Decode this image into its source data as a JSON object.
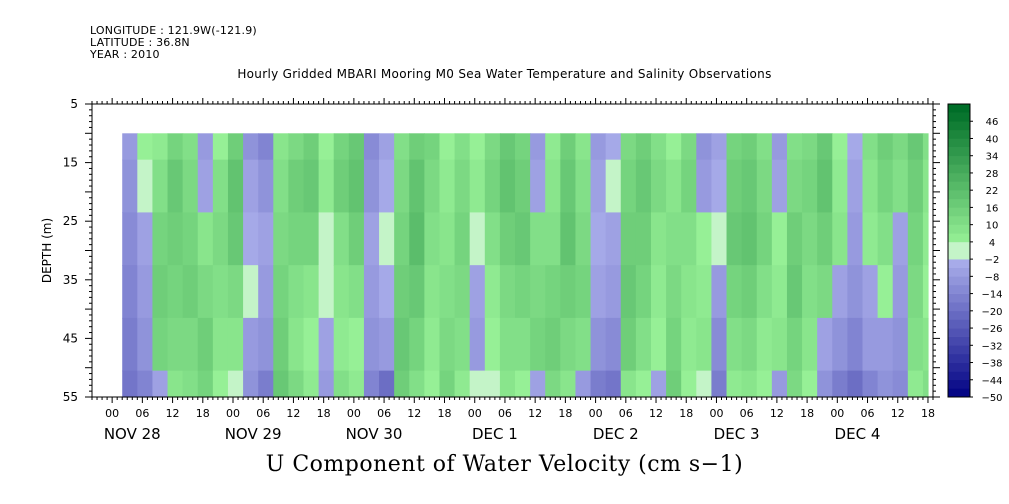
{
  "header": {
    "longitude": "LONGITUDE : 121.9W(-121.9)",
    "latitude": "LATITUDE : 36.8N",
    "year": "YEAR : 2010"
  },
  "chart_data": {
    "type": "heatmap",
    "title": "Hourly Gridded MBARI Mooring M0 Sea Water Temperature and Salinity Observations",
    "subtitle": "U Component of Water Velocity (cm s−1)",
    "ylabel": "DEPTH (m)",
    "xlabel": "",
    "ylim": [
      5,
      55
    ],
    "y_inverted": true,
    "y_ticks": [
      5,
      15,
      25,
      35,
      45,
      55
    ],
    "x_hour_ticks": [
      "00",
      "06",
      "12",
      "18",
      "00",
      "06",
      "12",
      "18",
      "00",
      "06",
      "12",
      "18",
      "00",
      "06",
      "12",
      "18",
      "00",
      "06",
      "12",
      "18",
      "00",
      "06",
      "12",
      "18",
      "00",
      "06",
      "12",
      "18"
    ],
    "x_day_labels": [
      "NOV 28",
      "NOV 29",
      "NOV 30",
      "DEC  1",
      "DEC  2",
      "DEC  3",
      "DEC  4"
    ],
    "x_range_hours": [
      -4,
      163
    ],
    "data_start_hour": 2,
    "data_depth_range": [
      10,
      55
    ],
    "colorbar_levels": [
      "46",
      "40",
      "34",
      "28",
      "22",
      "16",
      "10",
      "4",
      "−2",
      "−8",
      "−14",
      "−20",
      "−26",
      "−32",
      "−38",
      "−44",
      "−50"
    ],
    "colorbar_range": [
      -50,
      52
    ],
    "colorbar_step": 3,
    "pattern_note_levels": "values dominated by -8..22; alternating positive (green) and negative (blue) bands in time",
    "columns": [
      {
        "hour": 2,
        "values": [
          -8,
          -10,
          -12,
          -14,
          -16,
          -18
        ]
      },
      {
        "hour": 5,
        "values": [
          4,
          2,
          -6,
          -8,
          -10,
          -14
        ]
      },
      {
        "hour": 8,
        "values": [
          6,
          10,
          14,
          16,
          14,
          -6
        ]
      },
      {
        "hour": 11,
        "values": [
          14,
          18,
          16,
          14,
          12,
          8
        ]
      },
      {
        "hour": 14,
        "values": [
          10,
          12,
          14,
          16,
          12,
          10
        ]
      },
      {
        "hour": 17,
        "values": [
          -8,
          -6,
          8,
          12,
          16,
          14
        ]
      },
      {
        "hour": 20,
        "values": [
          4,
          10,
          12,
          10,
          8,
          4
        ]
      },
      {
        "hour": 23,
        "values": [
          16,
          20,
          18,
          12,
          8,
          2
        ]
      },
      {
        "hour": 26,
        "values": [
          -10,
          -6,
          -4,
          -2,
          -8,
          -10
        ]
      },
      {
        "hour": 29,
        "values": [
          -14,
          -10,
          -6,
          -8,
          -10,
          -16
        ]
      },
      {
        "hour": 32,
        "values": [
          8,
          10,
          12,
          14,
          16,
          18
        ]
      },
      {
        "hour": 35,
        "values": [
          12,
          16,
          14,
          10,
          8,
          12
        ]
      },
      {
        "hour": 38,
        "values": [
          16,
          18,
          14,
          8,
          4,
          6
        ]
      },
      {
        "hour": 41,
        "values": [
          4,
          6,
          2,
          -2,
          -6,
          -8
        ]
      },
      {
        "hour": 44,
        "values": [
          14,
          16,
          10,
          8,
          6,
          10
        ]
      },
      {
        "hour": 47,
        "values": [
          18,
          20,
          16,
          10,
          4,
          6
        ]
      },
      {
        "hour": 50,
        "values": [
          -12,
          -10,
          -6,
          -8,
          -10,
          -14
        ]
      },
      {
        "hour": 53,
        "values": [
          -6,
          -4,
          -2,
          -4,
          -8,
          -20
        ]
      },
      {
        "hour": 56,
        "values": [
          10,
          12,
          14,
          16,
          18,
          16
        ]
      },
      {
        "hour": 59,
        "values": [
          16,
          20,
          22,
          18,
          14,
          10
        ]
      },
      {
        "hour": 62,
        "values": [
          14,
          12,
          10,
          8,
          6,
          4
        ]
      },
      {
        "hour": 65,
        "values": [
          4,
          6,
          8,
          10,
          12,
          14
        ]
      },
      {
        "hour": 68,
        "values": [
          10,
          12,
          14,
          12,
          10,
          6
        ]
      },
      {
        "hour": 71,
        "values": [
          4,
          6,
          -2,
          -6,
          -8,
          2
        ]
      },
      {
        "hour": 74,
        "values": [
          12,
          14,
          10,
          6,
          4,
          2
        ]
      },
      {
        "hour": 77,
        "values": [
          18,
          20,
          16,
          12,
          10,
          8
        ]
      },
      {
        "hour": 80,
        "values": [
          14,
          16,
          18,
          14,
          10,
          4
        ]
      },
      {
        "hour": 83,
        "values": [
          -8,
          -6,
          10,
          12,
          14,
          -6
        ]
      },
      {
        "hour": 86,
        "values": [
          6,
          8,
          10,
          14,
          16,
          12
        ]
      },
      {
        "hour": 89,
        "values": [
          16,
          18,
          20,
          16,
          12,
          8
        ]
      },
      {
        "hour": 92,
        "values": [
          8,
          10,
          12,
          14,
          10,
          -8
        ]
      },
      {
        "hour": 95,
        "values": [
          -8,
          -6,
          -4,
          -6,
          -10,
          -16
        ]
      },
      {
        "hour": 98,
        "values": [
          -4,
          -2,
          -6,
          -8,
          -12,
          -18
        ]
      },
      {
        "hour": 101,
        "values": [
          12,
          14,
          16,
          18,
          16,
          8
        ]
      },
      {
        "hour": 104,
        "values": [
          16,
          18,
          16,
          14,
          10,
          4
        ]
      },
      {
        "hour": 107,
        "values": [
          10,
          12,
          8,
          6,
          4,
          -6
        ]
      },
      {
        "hour": 110,
        "values": [
          4,
          8,
          10,
          12,
          14,
          16
        ]
      },
      {
        "hour": 113,
        "values": [
          12,
          14,
          10,
          8,
          6,
          4
        ]
      },
      {
        "hour": 116,
        "values": [
          -10,
          -8,
          4,
          6,
          8,
          2
        ]
      },
      {
        "hour": 119,
        "values": [
          -6,
          -4,
          -2,
          -8,
          -12,
          -16
        ]
      },
      {
        "hour": 122,
        "values": [
          14,
          16,
          18,
          14,
          10,
          6
        ]
      },
      {
        "hour": 125,
        "values": [
          16,
          18,
          20,
          16,
          12,
          8
        ]
      },
      {
        "hour": 128,
        "values": [
          10,
          12,
          14,
          10,
          6,
          4
        ]
      },
      {
        "hour": 131,
        "values": [
          -8,
          -6,
          4,
          6,
          8,
          -8
        ]
      },
      {
        "hour": 134,
        "values": [
          10,
          12,
          16,
          18,
          14,
          12
        ]
      },
      {
        "hour": 137,
        "values": [
          12,
          14,
          12,
          10,
          8,
          4
        ]
      },
      {
        "hour": 140,
        "values": [
          18,
          20,
          16,
          12,
          -6,
          -10
        ]
      },
      {
        "hour": 143,
        "values": [
          4,
          6,
          8,
          -6,
          -10,
          -16
        ]
      },
      {
        "hour": 146,
        "values": [
          -4,
          -6,
          -8,
          -10,
          -14,
          -20
        ]
      },
      {
        "hour": 149,
        "values": [
          10,
          8,
          6,
          -6,
          -8,
          -14
        ]
      },
      {
        "hour": 152,
        "values": [
          16,
          14,
          10,
          4,
          -8,
          -10
        ]
      },
      {
        "hour": 155,
        "values": [
          12,
          10,
          -6,
          -8,
          -10,
          -12
        ]
      },
      {
        "hour": 158,
        "values": [
          18,
          16,
          14,
          12,
          10,
          6
        ]
      },
      {
        "hour": 161,
        "values": [
          10,
          8,
          6,
          4,
          8,
          10
        ]
      }
    ],
    "column_depths": [
      10,
      19,
      28,
      37,
      46,
      55
    ]
  }
}
